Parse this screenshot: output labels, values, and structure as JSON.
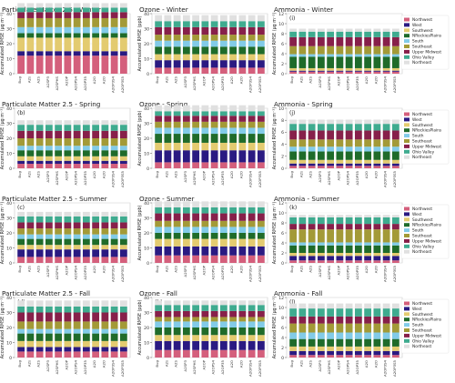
{
  "chart_data": {
    "type": "bar",
    "stacked": true,
    "categories": [
      "Bug",
      "A2s",
      "A2S",
      "A2SP3",
      "A2SPHS",
      "A2OP",
      "A2OPS4",
      "A2OP35",
      "A2O",
      "A2O",
      "A2OP3S4",
      "A2OP3S5"
    ],
    "colors": {
      "Northwest": "#d45f7c",
      "West": "#2a1a82",
      "Southwest": "#e3cb70",
      "NRockiesPlains": "#1f6b2a",
      "South": "#82cbe8",
      "Southeast": "#a39a37",
      "Upper Midwest": "#87204a",
      "Ohio Valley": "#3fab8f",
      "Northeast": "#e0e0e0"
    },
    "regions_order": [
      "Northwest",
      "West",
      "Southwest",
      "NRockiesPlains",
      "South",
      "Southeast",
      "Upper Midwest",
      "Ohio Valley",
      "Northeast"
    ],
    "legend_order": [
      "Northwest",
      "West",
      "Southwest",
      "NRockiesPlains",
      "South",
      "Southeast",
      "Upper Midwest",
      "Ohio Valley",
      "Northeast"
    ],
    "panels": [
      {
        "title": "Particulate Matter 2.5 - Winter",
        "label": "(a)",
        "ylabel": "Accumulated RMSE (µg m⁻³)",
        "ylim": [
          0,
          40
        ],
        "yticks": [
          0,
          10,
          20,
          30,
          40
        ],
        "values": {
          "Northwest": 12,
          "West": 3,
          "Southwest": 9,
          "NRockiesPlains": 3,
          "South": 4,
          "Southeast": 6,
          "Upper Midwest": 4,
          "Ohio Valley": 3,
          "Northeast": 3
        }
      },
      {
        "title": "Ozone - Winter",
        "label": "(e)",
        "ylabel": "Accumulated RMSE (ppb)",
        "ylim": [
          0,
          40
        ],
        "yticks": [
          0,
          10,
          20,
          30,
          40
        ],
        "values": {
          "Northwest": 4,
          "West": 5,
          "Southwest": 4,
          "NRockiesPlains": 5,
          "South": 4,
          "Southeast": 4,
          "Upper Midwest": 5,
          "Ohio Valley": 4,
          "Northeast": 4
        }
      },
      {
        "title": "Ammonia - Winter",
        "label": "(i)",
        "ylabel": "Accumulated RMSE (µg m⁻³)",
        "ylim": [
          0,
          12
        ],
        "yticks": [
          0,
          2,
          4,
          6,
          8,
          10,
          12
        ],
        "values": {
          "Northwest": 0.4,
          "West": 0.2,
          "Southwest": 0.5,
          "NRockiesPlains": 2.3,
          "South": 0.5,
          "Southeast": 1.6,
          "Upper Midwest": 1.8,
          "Ohio Valley": 1.1,
          "Northeast": 0.6
        }
      },
      {
        "title": "Particulate Matter 2.5 - Spring",
        "label": "(b)",
        "ylabel": "Accumulated RMSE (µg m⁻³)",
        "ylim": [
          0,
          40
        ],
        "yticks": [
          0,
          10,
          20,
          30,
          40
        ],
        "values": {
          "Northwest": 3,
          "West": 2,
          "Southwest": 3,
          "NRockiesPlains": 4,
          "South": 3,
          "Southeast": 5,
          "Upper Midwest": 5,
          "Ohio Valley": 4,
          "Northeast": 3
        }
      },
      {
        "title": "Ozone - Spring",
        "label": "(f)",
        "ylabel": "Accumulated RMSE (ppb)",
        "ylim": [
          0,
          40
        ],
        "yticks": [
          0,
          10,
          20,
          30,
          40
        ],
        "values": {
          "Northwest": 4,
          "West": 8,
          "Southwest": 5,
          "NRockiesPlains": 6,
          "South": 4,
          "Southeast": 4,
          "Upper Midwest": 4,
          "Ohio Valley": 3,
          "Northeast": 4
        }
      },
      {
        "title": "Ammonia - Spring",
        "label": "(j)",
        "ylabel": "Accumulated RMSE (µg m⁻³)",
        "ylim": [
          0,
          10
        ],
        "yticks": [
          0,
          2,
          4,
          6,
          8,
          10
        ],
        "values": {
          "Northwest": 0.4,
          "West": 0.4,
          "Southwest": 0.6,
          "NRockiesPlains": 1.4,
          "South": 0.8,
          "Southeast": 1.2,
          "Upper Midwest": 1.5,
          "Ohio Valley": 1.1,
          "Northeast": 0.7
        }
      },
      {
        "title": "Particulate Matter 2.5 - Summer",
        "label": "(c)",
        "ylabel": "Accumulated RMSE (µg m⁻³)",
        "ylim": [
          0,
          40
        ],
        "yticks": [
          0,
          10,
          20,
          30,
          40
        ],
        "values": {
          "Northwest": 4,
          "West": 5,
          "Southwest": 3,
          "NRockiesPlains": 4,
          "South": 3,
          "Southeast": 4,
          "Upper Midwest": 4,
          "Ohio Valley": 4,
          "Northeast": 3
        }
      },
      {
        "title": "Ozone - Summer",
        "label": "(g)",
        "ylabel": "Accumulated RMSE (ppb)",
        "ylim": [
          0,
          40
        ],
        "yticks": [
          0,
          10,
          20,
          30,
          40
        ],
        "values": {
          "Northwest": 5,
          "West": 6,
          "Southwest": 5,
          "NRockiesPlains": 4,
          "South": 4,
          "Southeast": 4,
          "Upper Midwest": 5,
          "Ohio Valley": 4,
          "Northeast": 4
        }
      },
      {
        "title": "Ammonia - Summer",
        "label": "(k)",
        "ylabel": "Accumulated RMSE (µg m⁻³)",
        "ylim": [
          0,
          12
        ],
        "yticks": [
          0,
          2,
          4,
          6,
          8,
          10,
          12
        ],
        "values": {
          "Northwest": 0.5,
          "West": 0.9,
          "Southwest": 0.6,
          "NRockiesPlains": 1.5,
          "South": 0.6,
          "Southeast": 2.6,
          "Upper Midwest": 1.1,
          "Ohio Valley": 1.3,
          "Northeast": 0.5
        }
      },
      {
        "title": "Particulate Matter 2.5 - Fall",
        "label": "(d)",
        "ylabel": "Accumulated RMSE (µg m⁻³)",
        "ylim": [
          0,
          40
        ],
        "yticks": [
          0,
          10,
          20,
          30,
          40
        ],
        "values": {
          "Northwest": 4,
          "West": 3,
          "Southwest": 4,
          "NRockiesPlains": 5,
          "South": 3,
          "Southeast": 5,
          "Upper Midwest": 6,
          "Ohio Valley": 4,
          "Northeast": 4
        }
      },
      {
        "title": "Ozone - Fall",
        "label": "(h)",
        "ylabel": "Accumulated RMSE (ppb)",
        "ylim": [
          0,
          40
        ],
        "yticks": [
          0,
          10,
          20,
          30,
          40
        ],
        "values": {
          "Northwest": 5,
          "West": 6,
          "Southwest": 4,
          "NRockiesPlains": 5,
          "South": 4,
          "Southeast": 3,
          "Upper Midwest": 4,
          "Ohio Valley": 4,
          "Northeast": 3
        }
      },
      {
        "title": "Ammonia - Fall",
        "label": "(l)",
        "ylabel": "Accumulated RMSE (µg m⁻³)",
        "ylim": [
          0,
          12
        ],
        "yticks": [
          0,
          2,
          4,
          6,
          8,
          10,
          12
        ],
        "values": {
          "Northwest": 0.5,
          "West": 0.8,
          "Southwest": 0.9,
          "NRockiesPlains": 1.5,
          "South": 1.3,
          "Southeast": 1.8,
          "Upper Midwest": 1.4,
          "Ohio Valley": 1.6,
          "Northeast": 1.0
        }
      }
    ]
  }
}
